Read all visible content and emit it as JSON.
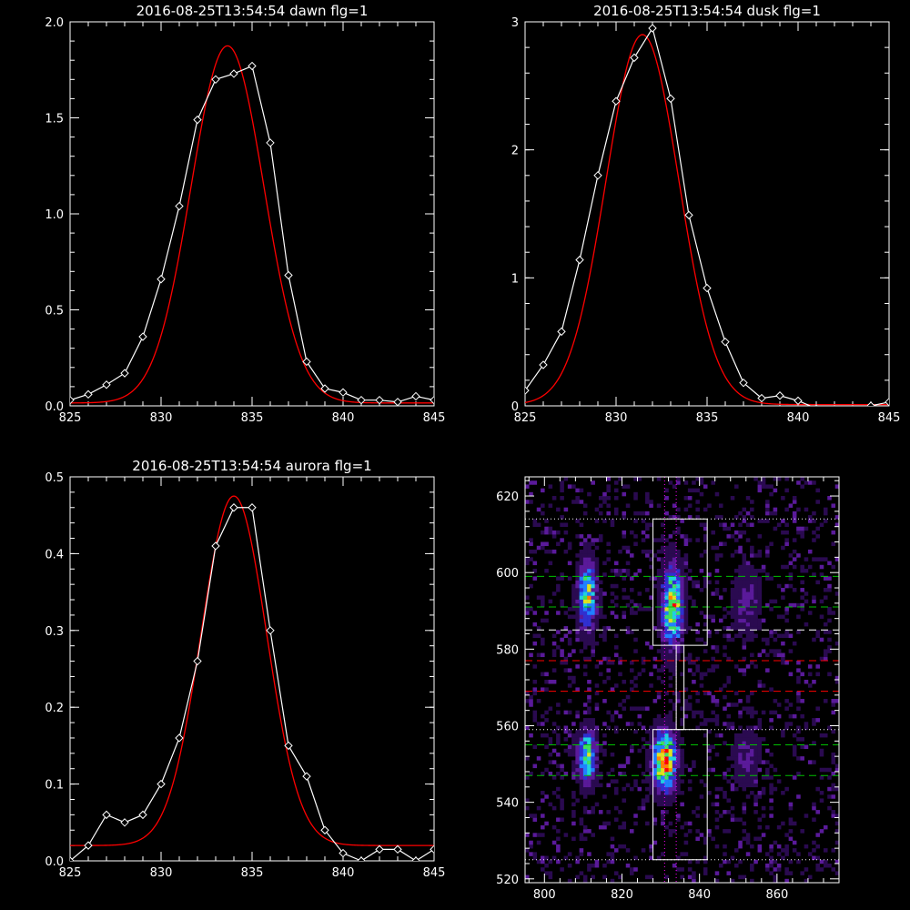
{
  "chart_data": [
    {
      "type": "line",
      "title": "2016-08-25T13:54:54 dawn flg=1",
      "xlim": [
        825,
        845
      ],
      "ylim": [
        0,
        2.0
      ],
      "xticks": [
        "825",
        "830",
        "835",
        "840",
        "845"
      ],
      "yticks": [
        "0.0",
        "0.5",
        "1.0",
        "1.5",
        "2.0"
      ],
      "xtick_values": [
        825,
        830,
        835,
        840,
        845
      ],
      "ytick_values": [
        0,
        0.5,
        1.0,
        1.5,
        2.0
      ],
      "series": [
        {
          "kind": "data",
          "color": "#ffffff",
          "marker": "diamond",
          "x": [
            825,
            826,
            827,
            828,
            829,
            830,
            831,
            832,
            833,
            834,
            835,
            836,
            837,
            838,
            839,
            840,
            841,
            842,
            843,
            844,
            845
          ],
          "y": [
            0.03,
            0.06,
            0.11,
            0.17,
            0.36,
            0.66,
            1.04,
            1.49,
            1.7,
            1.73,
            1.77,
            1.37,
            0.68,
            0.23,
            0.09,
            0.07,
            0.03,
            0.03,
            0.02,
            0.05,
            0.03
          ]
        },
        {
          "kind": "fit",
          "color": "#ff0000",
          "gaussian": {
            "amp": 1.86,
            "center": 833.65,
            "sigma": 2.0,
            "base": 0.015
          }
        }
      ]
    },
    {
      "type": "line",
      "title": "2016-08-25T13:54:54 dusk flg=1",
      "xlim": [
        825,
        845
      ],
      "ylim": [
        0,
        3.0
      ],
      "xticks": [
        "825",
        "830",
        "835",
        "840",
        "845"
      ],
      "yticks": [
        "0",
        "1",
        "2",
        "3"
      ],
      "xtick_values": [
        825,
        830,
        835,
        840,
        845
      ],
      "ytick_values": [
        0,
        1,
        2,
        3
      ],
      "series": [
        {
          "kind": "data",
          "color": "#ffffff",
          "marker": "diamond",
          "x": [
            825,
            826,
            827,
            828,
            829,
            830,
            831,
            832,
            833,
            834,
            835,
            836,
            837,
            838,
            839,
            840,
            841,
            842,
            843,
            844,
            845
          ],
          "y": [
            0.12,
            0.32,
            0.58,
            1.14,
            1.8,
            2.38,
            2.72,
            2.95,
            2.4,
            1.49,
            0.92,
            0.5,
            0.18,
            0.06,
            0.08,
            0.04,
            -0.02,
            -0.04,
            -0.03,
            0.0,
            0.03
          ]
        },
        {
          "kind": "fit",
          "color": "#ff0000",
          "gaussian": {
            "amp": 2.89,
            "center": 831.45,
            "sigma": 2.0,
            "base": 0.01
          }
        }
      ]
    },
    {
      "type": "line",
      "title": "2016-08-25T13:54:54 aurora flg=1",
      "xlim": [
        825,
        845
      ],
      "ylim": [
        0,
        0.5
      ],
      "xticks": [
        "825",
        "830",
        "835",
        "840",
        "845"
      ],
      "yticks": [
        "0.0",
        "0.1",
        "0.2",
        "0.3",
        "0.4",
        "0.5"
      ],
      "xtick_values": [
        825,
        830,
        835,
        840,
        845
      ],
      "ytick_values": [
        0,
        0.1,
        0.2,
        0.3,
        0.4,
        0.5
      ],
      "series": [
        {
          "kind": "data",
          "color": "#ffffff",
          "marker": "diamond",
          "x": [
            825,
            826,
            827,
            828,
            829,
            830,
            831,
            832,
            833,
            834,
            835,
            836,
            837,
            838,
            839,
            840,
            841,
            842,
            843,
            844,
            845
          ],
          "y": [
            0.0,
            0.02,
            0.06,
            0.05,
            0.06,
            0.1,
            0.16,
            0.26,
            0.41,
            0.46,
            0.46,
            0.3,
            0.15,
            0.11,
            0.04,
            0.01,
            0.0,
            0.015,
            0.015,
            0.0,
            0.015
          ]
        },
        {
          "kind": "fit",
          "color": "#ff0000",
          "gaussian": {
            "amp": 0.455,
            "center": 834.0,
            "sigma": 1.8,
            "base": 0.02
          }
        }
      ]
    },
    {
      "type": "heatmap",
      "xlim": [
        795,
        876
      ],
      "ylim": [
        519,
        625
      ],
      "xticks": [
        "800",
        "820",
        "840",
        "860"
      ],
      "yticks": [
        "520",
        "540",
        "560",
        "580",
        "600",
        "620"
      ],
      "xtick_values": [
        800,
        820,
        840,
        860
      ],
      "ytick_values": [
        520,
        540,
        560,
        580,
        600,
        620
      ],
      "colorscale": [
        "#000000",
        "#2a0a50",
        "#5a1a9a",
        "#3030d0",
        "#2080ff",
        "#20d0e0",
        "#40e060",
        "#e0e020",
        "#ff8000",
        "#ff0000"
      ],
      "blobs": [
        {
          "cx": 811,
          "cy": 594,
          "sx": 1.6,
          "sy": 6,
          "peak": 0.7
        },
        {
          "cx": 811,
          "cy": 552,
          "sx": 1.6,
          "sy": 4.5,
          "peak": 0.72
        },
        {
          "cx": 833,
          "cy": 591,
          "sx": 1.8,
          "sy": 7,
          "peak": 0.8
        },
        {
          "cx": 831,
          "cy": 551,
          "sx": 2.0,
          "sy": 5,
          "peak": 1.0
        },
        {
          "cx": 852,
          "cy": 592,
          "sx": 2.5,
          "sy": 6,
          "peak": 0.22
        },
        {
          "cx": 852,
          "cy": 552,
          "sx": 2.5,
          "sy": 5,
          "peak": 0.2
        }
      ],
      "boxes": [
        {
          "x0": 828,
          "x1": 842,
          "y0": 581,
          "y1": 614,
          "color": "#ffffff"
        },
        {
          "x0": 828,
          "x1": 842,
          "y0": 525,
          "y1": 559,
          "color": "#ffffff"
        },
        {
          "x0": 834,
          "x1": 836,
          "y0": 559,
          "y1": 581,
          "color": "#ffffff"
        }
      ],
      "hlines": [
        {
          "y": 614,
          "color": "#ffffff",
          "style": "dotted"
        },
        {
          "y": 599,
          "color": "#00c000",
          "style": "dashed"
        },
        {
          "y": 591,
          "color": "#00c000",
          "style": "dashed"
        },
        {
          "y": 585,
          "color": "#ffffff",
          "style": "dashed"
        },
        {
          "y": 577,
          "color": "#ff0000",
          "style": "dashed"
        },
        {
          "y": 569,
          "color": "#ff0000",
          "style": "dashed"
        },
        {
          "y": 559,
          "color": "#ffffff",
          "style": "dotted"
        },
        {
          "y": 555,
          "color": "#00c000",
          "style": "dashed"
        },
        {
          "y": 547,
          "color": "#00c000",
          "style": "dashed"
        },
        {
          "y": 525,
          "color": "#ffffff",
          "style": "dotted"
        }
      ],
      "vlines": [
        {
          "x": 831,
          "color": "#ff00ff",
          "style": "dotted"
        },
        {
          "x": 834,
          "color": "#ff00ff",
          "style": "dotted"
        }
      ]
    }
  ]
}
